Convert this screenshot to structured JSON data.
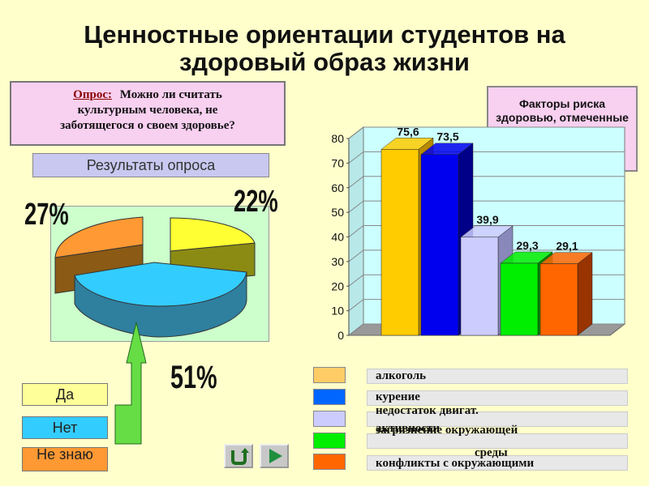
{
  "title": {
    "line1": "Ценностные ориентации студентов на",
    "line2": "здоровый образ жизни"
  },
  "question": {
    "label": "Опрос:",
    "text_part1": "Можно ли считать",
    "text_part2": "культурным человека, не",
    "text_part3": "заботящегося о своем здоровье?"
  },
  "results_label": "Результаты опроса",
  "factors_label": "Факторы риска здоровью, отмеченные студентами(%)",
  "pie_labels": {
    "no": "51%",
    "yes": "22%",
    "dont_know": "27%"
  },
  "answers": {
    "yes": "Да",
    "no": "Нет",
    "dont_know": "Не знаю"
  },
  "colors": {
    "background": "#FFFFCC",
    "yes": "#FFFF33",
    "no": "#33CCFF",
    "dont_know": "#FF9933",
    "arrow": "#66DD44"
  },
  "chart_data": [
    {
      "type": "pie",
      "categories": [
        "Да",
        "Нет",
        "Не знаю"
      ],
      "values": [
        22,
        51,
        27
      ],
      "data_labels": [
        "22%",
        "51%",
        "27%"
      ]
    },
    {
      "type": "bar",
      "categories": [
        "алкоголь",
        "курение",
        "недостаток двигат. активности",
        "загрязнение окружающей среды",
        "конфликты с окружающими"
      ],
      "values": [
        75.6,
        73.5,
        39.9,
        29.3,
        29.1
      ],
      "data_labels": [
        "75,6",
        "73,5",
        "39,9",
        "29,3",
        "29,1"
      ],
      "colors": [
        "#FFCC00",
        "#0000EE",
        "#CCCCFF",
        "#00EE00",
        "#FF6600"
      ],
      "ylim": [
        0,
        80
      ],
      "yticks": [
        "0",
        "10",
        "20",
        "30",
        "40",
        "50",
        "60",
        "70",
        "80"
      ],
      "grid": true
    }
  ],
  "legend": [
    {
      "text": "алкоголь",
      "color": "#FFCC00"
    },
    {
      "text": "курение",
      "color": "#0000EE"
    },
    {
      "text": "недостаток двигат.",
      "color": "#CCCCFF"
    },
    {
      "text": "активности",
      "color": "#00EE00"
    },
    {
      "text": "загрязнение окружающей",
      "color": "#FF6600"
    },
    {
      "text": "среды",
      "color": ""
    },
    {
      "text": "конфликты с окружающими",
      "color": ""
    }
  ],
  "nav": {
    "return_icon": "return-arrow-icon",
    "next_icon": "play-triangle-icon"
  }
}
